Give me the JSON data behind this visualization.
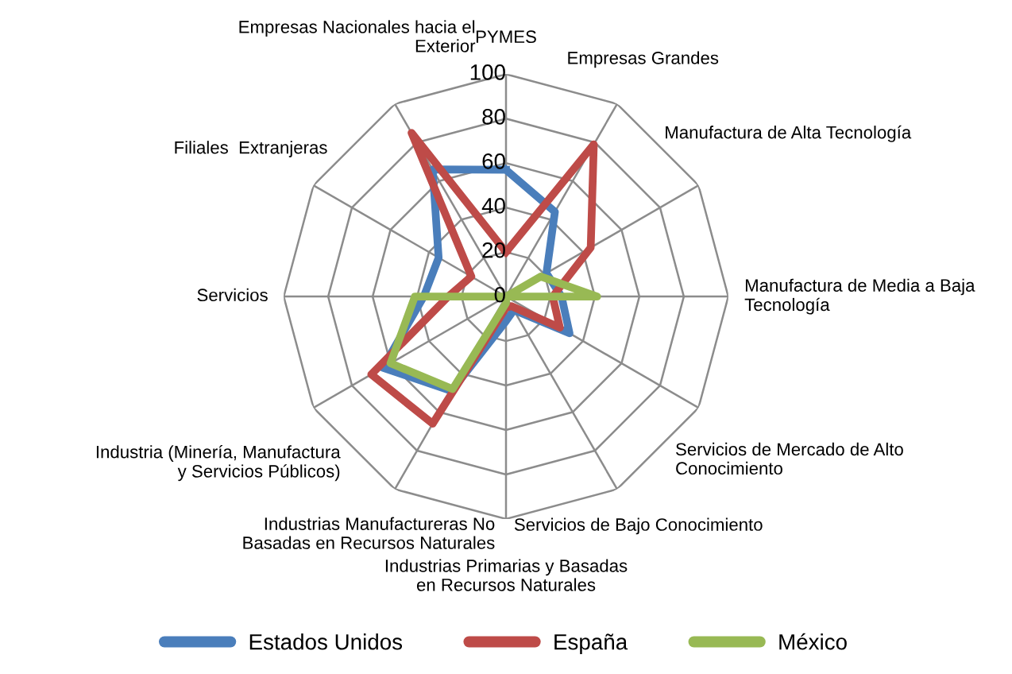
{
  "chart_data": {
    "type": "radar",
    "categories": [
      "PYMES",
      "Empresas Grandes",
      "Manufactura de Alta Tecnología",
      "Manufactura de Media a Baja\nTecnología",
      "Servicios de Mercado de Alto\nConocimiento",
      "Servicios de Bajo Conocimiento",
      "Industrias Primarias y Basadas\nen Recursos Naturales",
      "Industrias Manufactureras No\nBasadas en Recursos Naturales",
      "Industria (Minería, Manufactura\ny Servicios Públicos)",
      "Servicios",
      "Filiales  Extranjeras",
      "Empresas Nacionales hacia el\nExterior"
    ],
    "series": [
      {
        "name": "Estados Unidos",
        "color": "#4a7ebb",
        "values": [
          57,
          44,
          21,
          25,
          33,
          7,
          11,
          49,
          64,
          37,
          35,
          66
        ]
      },
      {
        "name": "España",
        "color": "#be4b48",
        "values": [
          20,
          79,
          44,
          21,
          28,
          5,
          5,
          66,
          70,
          26,
          18,
          85
        ]
      },
      {
        "name": "México",
        "color": "#98b954",
        "values": [
          0,
          0,
          18,
          41,
          0,
          0,
          3,
          48,
          60,
          41,
          0,
          0
        ]
      }
    ],
    "ylim": [
      0,
      100
    ],
    "yticks": [
      0,
      20,
      40,
      60,
      80,
      100
    ],
    "grid": true,
    "legend": "bottom"
  }
}
